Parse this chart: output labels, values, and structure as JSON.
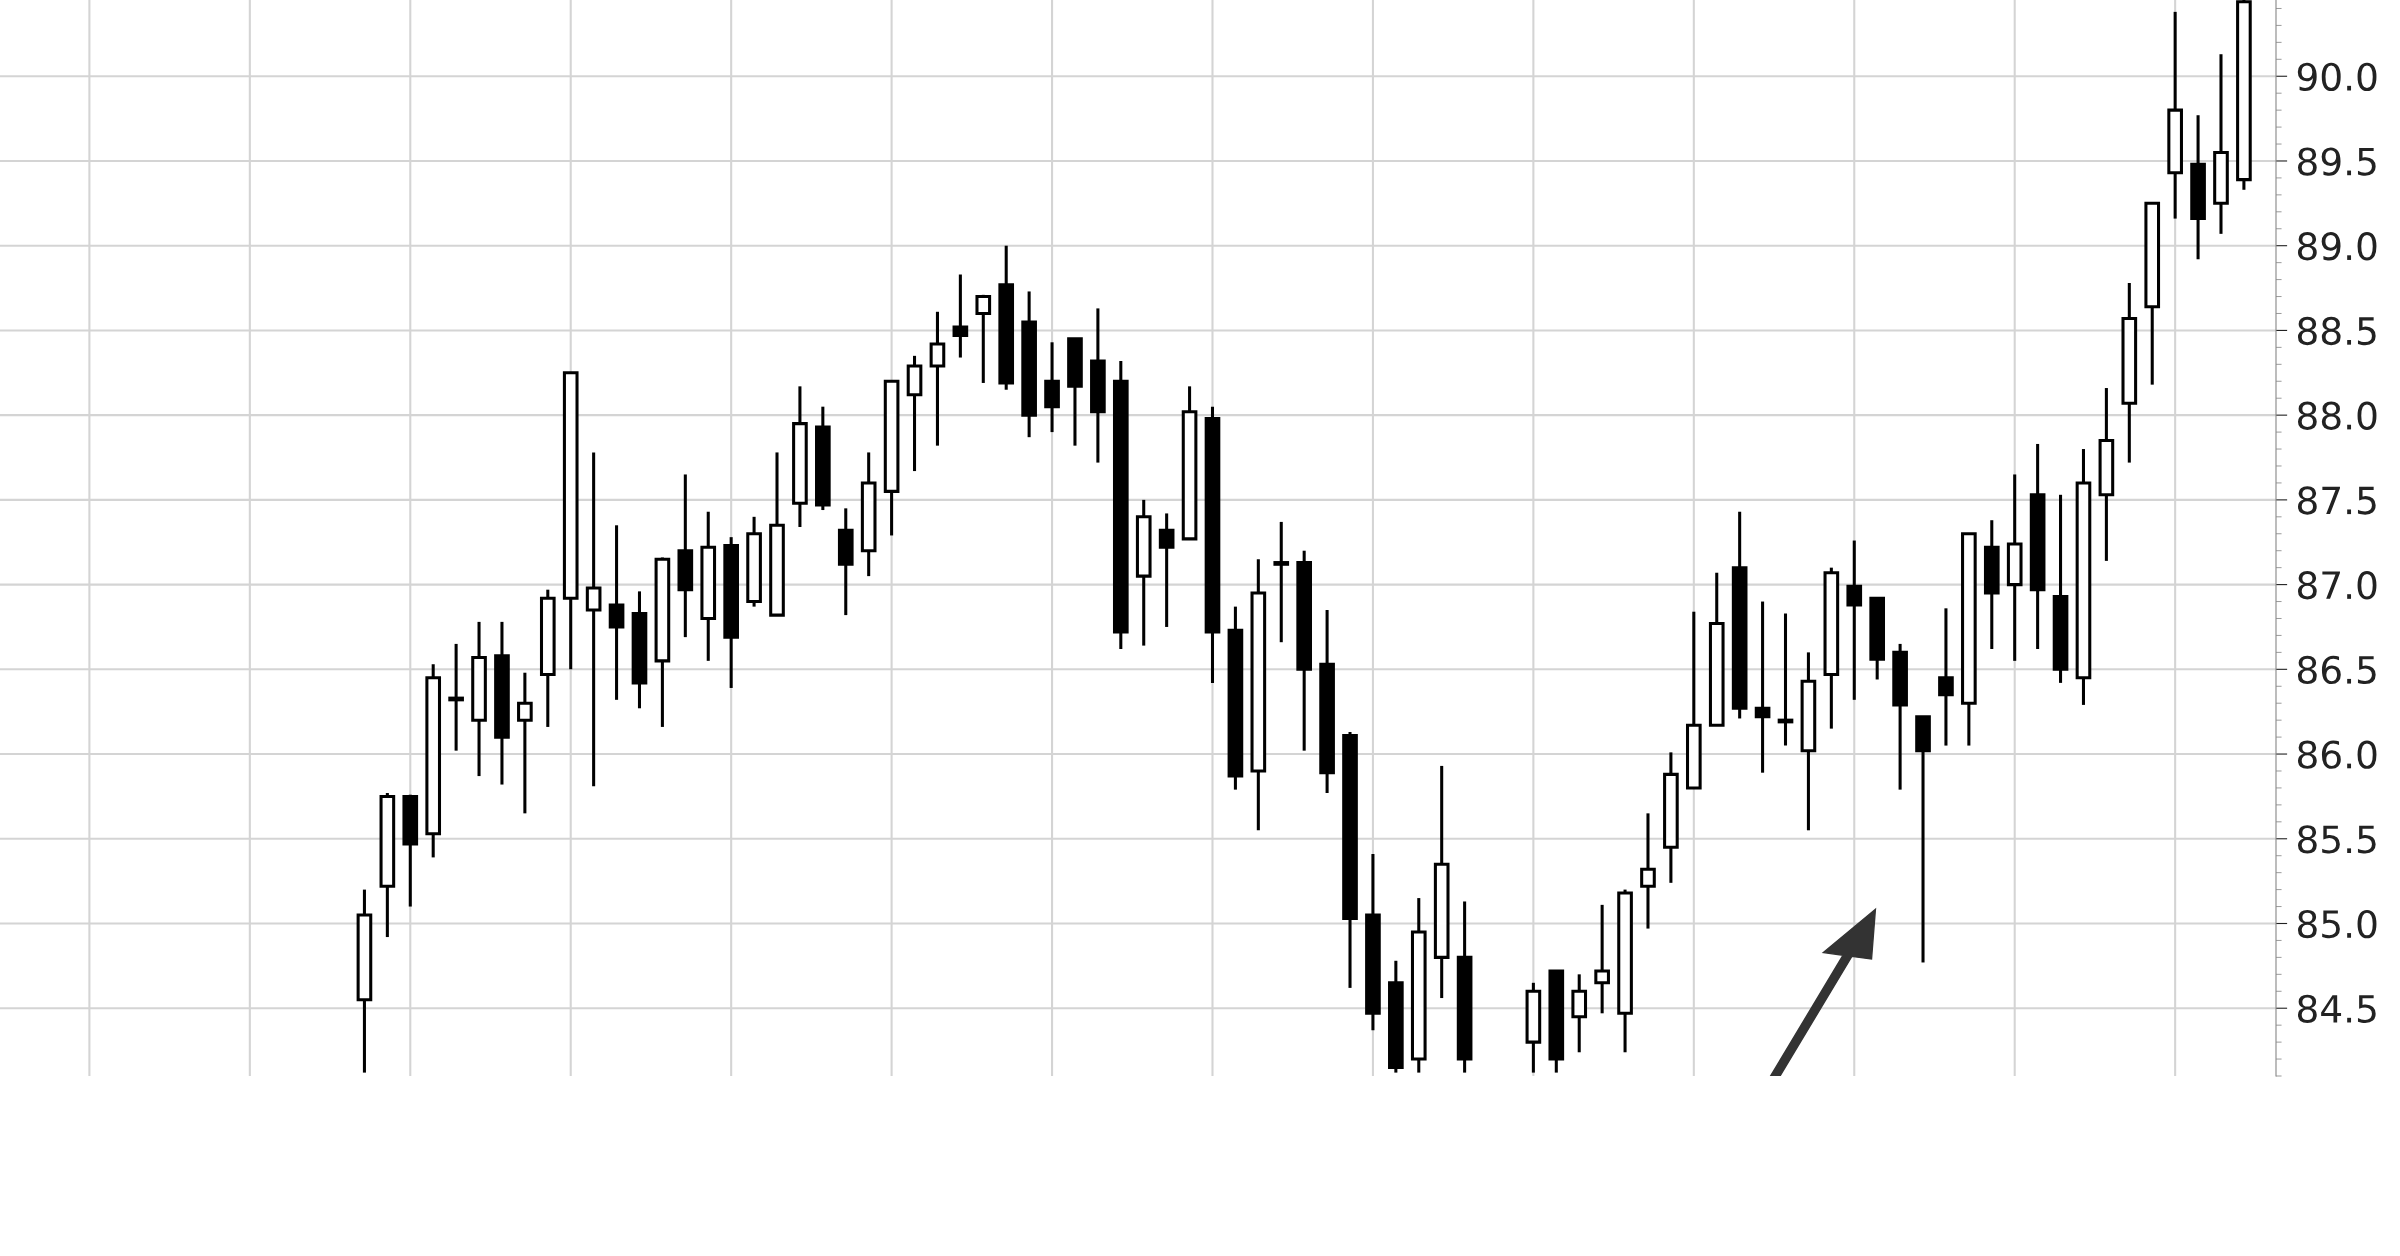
{
  "chart_data": {
    "type": "candlestick",
    "categories": [
      null,
      null,
      null,
      null,
      null,
      null,
      null,
      null,
      null,
      null,
      null,
      null,
      null,
      null,
      null,
      null,
      null,
      null,
      null,
      null,
      null,
      null,
      null,
      null,
      null,
      null,
      null,
      null,
      null,
      null,
      null,
      null,
      null,
      null,
      null,
      null,
      null,
      null,
      null,
      null,
      null,
      null,
      null,
      null,
      null,
      null,
      null,
      null,
      null,
      null,
      null,
      null,
      null,
      null,
      null,
      null,
      null,
      null,
      null,
      null,
      null,
      null,
      null,
      null,
      null,
      null,
      null,
      null,
      null,
      null,
      null,
      null,
      null,
      null,
      null,
      null,
      null,
      null,
      null,
      null,
      null,
      null,
      null,
      null,
      null,
      null,
      null,
      null,
      null,
      null,
      null,
      null,
      null,
      null,
      null,
      null,
      null,
      null
    ],
    "ohlc": [
      null,
      null,
      null,
      null,
      null,
      null,
      null,
      null,
      null,
      null,
      null,
      null,
      null,
      null,
      null,
      [
        84.55,
        85.2,
        84.12,
        85.05
      ],
      [
        85.22,
        85.77,
        84.92,
        85.75
      ],
      [
        85.75,
        85.76,
        85.1,
        85.47
      ],
      [
        85.53,
        86.53,
        85.39,
        86.45
      ],
      [
        86.32,
        86.65,
        86.02,
        86.33
      ],
      [
        86.2,
        86.78,
        85.87,
        86.57
      ],
      [
        86.58,
        86.78,
        85.82,
        86.1
      ],
      [
        86.2,
        86.48,
        85.65,
        86.3
      ],
      [
        86.47,
        86.97,
        86.16,
        86.92
      ],
      [
        86.92,
        88.25,
        86.5,
        88.25
      ],
      [
        86.85,
        87.78,
        85.81,
        86.98
      ],
      [
        86.88,
        87.35,
        86.32,
        86.75
      ],
      [
        86.83,
        86.96,
        86.27,
        86.42
      ],
      [
        86.55,
        87.16,
        86.16,
        87.15
      ],
      [
        87.2,
        87.65,
        86.69,
        86.97
      ],
      [
        86.8,
        87.43,
        86.55,
        87.22
      ],
      [
        87.23,
        87.28,
        86.39,
        86.69
      ],
      [
        86.9,
        87.4,
        86.87,
        87.3
      ],
      [
        86.82,
        87.78,
        86.82,
        87.35
      ],
      [
        87.48,
        88.17,
        87.34,
        87.95
      ],
      [
        87.93,
        88.05,
        87.44,
        87.47
      ],
      [
        87.32,
        87.45,
        86.82,
        87.12
      ],
      [
        87.2,
        87.78,
        87.05,
        87.6
      ],
      [
        87.55,
        88.2,
        87.29,
        88.2
      ],
      [
        88.12,
        88.35,
        87.67,
        88.29
      ],
      [
        88.29,
        88.61,
        87.82,
        88.42
      ],
      [
        88.52,
        88.83,
        88.34,
        88.47
      ],
      [
        88.6,
        88.71,
        88.19,
        88.7
      ],
      [
        88.77,
        89.0,
        88.15,
        88.19
      ],
      [
        88.55,
        88.73,
        87.87,
        88.0
      ],
      [
        88.2,
        88.43,
        87.9,
        88.05
      ],
      [
        88.45,
        88.45,
        87.82,
        88.17
      ],
      [
        88.32,
        88.63,
        87.72,
        88.02
      ],
      [
        88.2,
        88.32,
        86.62,
        86.72
      ],
      [
        87.05,
        87.5,
        86.64,
        87.4
      ],
      [
        87.32,
        87.42,
        86.75,
        87.22
      ],
      [
        87.27,
        88.17,
        87.27,
        88.02
      ],
      [
        87.98,
        88.05,
        86.42,
        86.72
      ],
      [
        86.73,
        86.87,
        85.79,
        85.87
      ],
      [
        85.9,
        87.15,
        85.55,
        86.95
      ],
      [
        87.13,
        87.37,
        86.66,
        87.12
      ],
      [
        87.13,
        87.2,
        86.02,
        86.5
      ],
      [
        86.53,
        86.85,
        85.77,
        85.89
      ],
      [
        86.11,
        86.13,
        84.62,
        85.03
      ],
      [
        85.05,
        85.41,
        84.37,
        84.47
      ],
      [
        84.65,
        84.78,
        84.12,
        84.15
      ],
      [
        84.2,
        85.15,
        84.12,
        84.95
      ],
      [
        84.8,
        85.93,
        84.56,
        85.35
      ],
      [
        84.8,
        85.13,
        84.12,
        84.2
      ],
      null,
      null,
      [
        84.3,
        84.65,
        84.12,
        84.6
      ],
      [
        84.72,
        84.72,
        84.12,
        84.2
      ],
      [
        84.45,
        84.7,
        84.24,
        84.6
      ],
      [
        84.65,
        85.11,
        84.47,
        84.72
      ],
      [
        84.47,
        85.2,
        84.24,
        85.18
      ],
      [
        85.22,
        85.65,
        84.97,
        85.32
      ],
      [
        85.45,
        86.01,
        85.24,
        85.88
      ],
      [
        85.8,
        86.84,
        85.8,
        86.17
      ],
      [
        86.17,
        87.07,
        86.17,
        86.77
      ],
      [
        87.1,
        87.43,
        86.21,
        86.27
      ],
      [
        86.27,
        86.9,
        85.89,
        86.22
      ],
      [
        86.2,
        86.83,
        86.05,
        86.19
      ],
      [
        86.02,
        86.6,
        85.55,
        86.43
      ],
      [
        86.47,
        87.1,
        86.15,
        87.07
      ],
      [
        86.99,
        87.26,
        86.32,
        86.88
      ],
      [
        86.92,
        86.92,
        86.44,
        86.56
      ],
      [
        86.6,
        86.65,
        85.79,
        86.29
      ],
      [
        86.22,
        86.22,
        84.77,
        86.02
      ],
      [
        86.45,
        86.86,
        86.05,
        86.35
      ],
      [
        86.3,
        87.3,
        86.05,
        87.3
      ],
      [
        87.22,
        87.38,
        86.62,
        86.95
      ],
      [
        87.0,
        87.65,
        86.55,
        87.24
      ],
      [
        87.53,
        87.83,
        86.62,
        86.97
      ],
      [
        86.93,
        87.53,
        86.42,
        86.5
      ],
      [
        86.45,
        87.8,
        86.29,
        87.6
      ],
      [
        87.53,
        88.16,
        87.14,
        87.85
      ],
      [
        88.07,
        88.78,
        87.72,
        88.57
      ],
      [
        88.64,
        89.25,
        88.18,
        89.25
      ],
      [
        89.43,
        90.38,
        89.16,
        89.8
      ],
      [
        89.48,
        89.77,
        88.92,
        89.16
      ],
      [
        89.25,
        90.13,
        89.07,
        89.55
      ],
      [
        89.39,
        90.45,
        89.33,
        90.44
      ]
    ],
    "ylim": [
      84.1,
      90.45
    ],
    "yticks": [
      {
        "value": 84.5,
        "label": "84.5"
      },
      {
        "value": 85,
        "label": "85.0"
      },
      {
        "value": 85.5,
        "label": "85.5"
      },
      {
        "value": 86,
        "label": "86.0"
      },
      {
        "value": 86.5,
        "label": "86.5"
      },
      {
        "value": 87,
        "label": "87.0"
      },
      {
        "value": 87.5,
        "label": "87.5"
      },
      {
        "value": 88,
        "label": "88.0"
      },
      {
        "value": 88.5,
        "label": "88.5"
      },
      {
        "value": 89,
        "label": "89.0"
      },
      {
        "value": 89.5,
        "label": "89.5"
      },
      {
        "value": 90,
        "label": "90.0"
      }
    ],
    "grid": true
  }
}
